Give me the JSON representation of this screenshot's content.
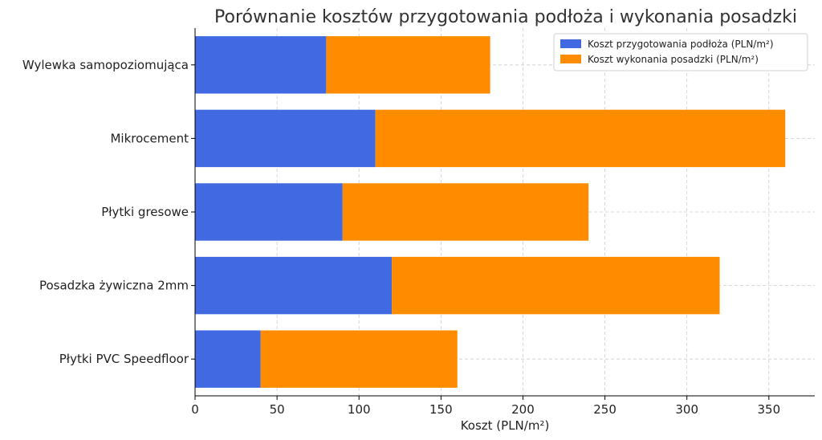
{
  "chart_data": {
    "type": "bar",
    "orientation": "horizontal",
    "stacked": true,
    "title": "Porównanie kosztów przygotowania podłoża i wykonania posadzki",
    "xlabel": "Koszt (PLN/m²)",
    "ylabel": "",
    "xlim": [
      0,
      378
    ],
    "xticks": [
      0,
      50,
      100,
      150,
      200,
      250,
      300,
      350
    ],
    "grid": true,
    "legend_position": "top-right",
    "categories": [
      "Wylewka samopoziomująca",
      "Mikrocement",
      "Płytki gresowe",
      "Posadzka żywiczna 2mm",
      "Płytki PVC Speedfloor"
    ],
    "series": [
      {
        "name": "Koszt przygotowania podłoża (PLN/m²)",
        "color": "#4169E1",
        "values": [
          80,
          110,
          90,
          120,
          40
        ]
      },
      {
        "name": "Koszt wykonania posadzki (PLN/m²)",
        "color": "#FF8C00",
        "values": [
          100,
          250,
          150,
          200,
          120
        ]
      }
    ]
  }
}
